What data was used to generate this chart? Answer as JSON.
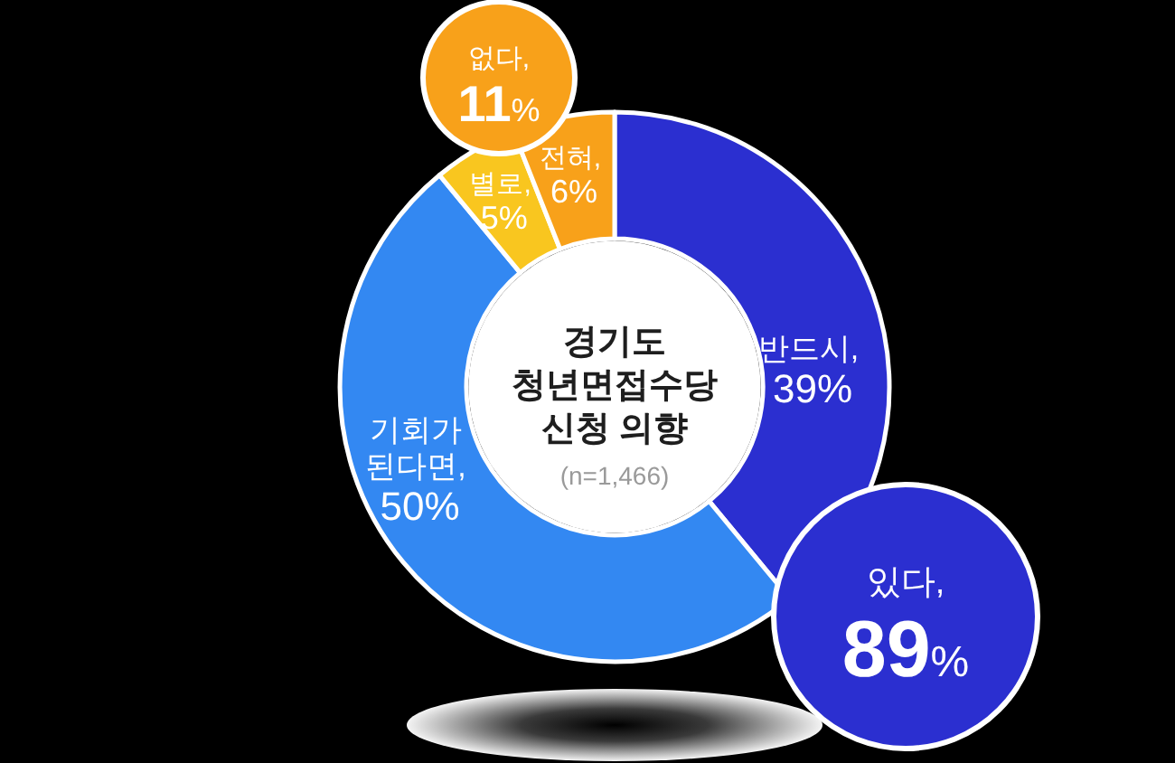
{
  "chart_data": {
    "type": "donut",
    "title": "경기도 청년면접수당 신청 의향",
    "subtitle": "(n=1,466)",
    "categories": [
      null,
      null,
      null,
      null
    ],
    "values": [
      39,
      50,
      5,
      6
    ],
    "value_labels": [
      "반드시, 39%",
      "기회가 된다면, 50%",
      "별로, 5%",
      "전혀, 6%"
    ],
    "colors": [
      "#2b2fd0",
      "#3388f2",
      "#f9c61f",
      "#f8a11a"
    ],
    "annotations": [
      "있다, 89%",
      "없다, 11%"
    ]
  }
}
